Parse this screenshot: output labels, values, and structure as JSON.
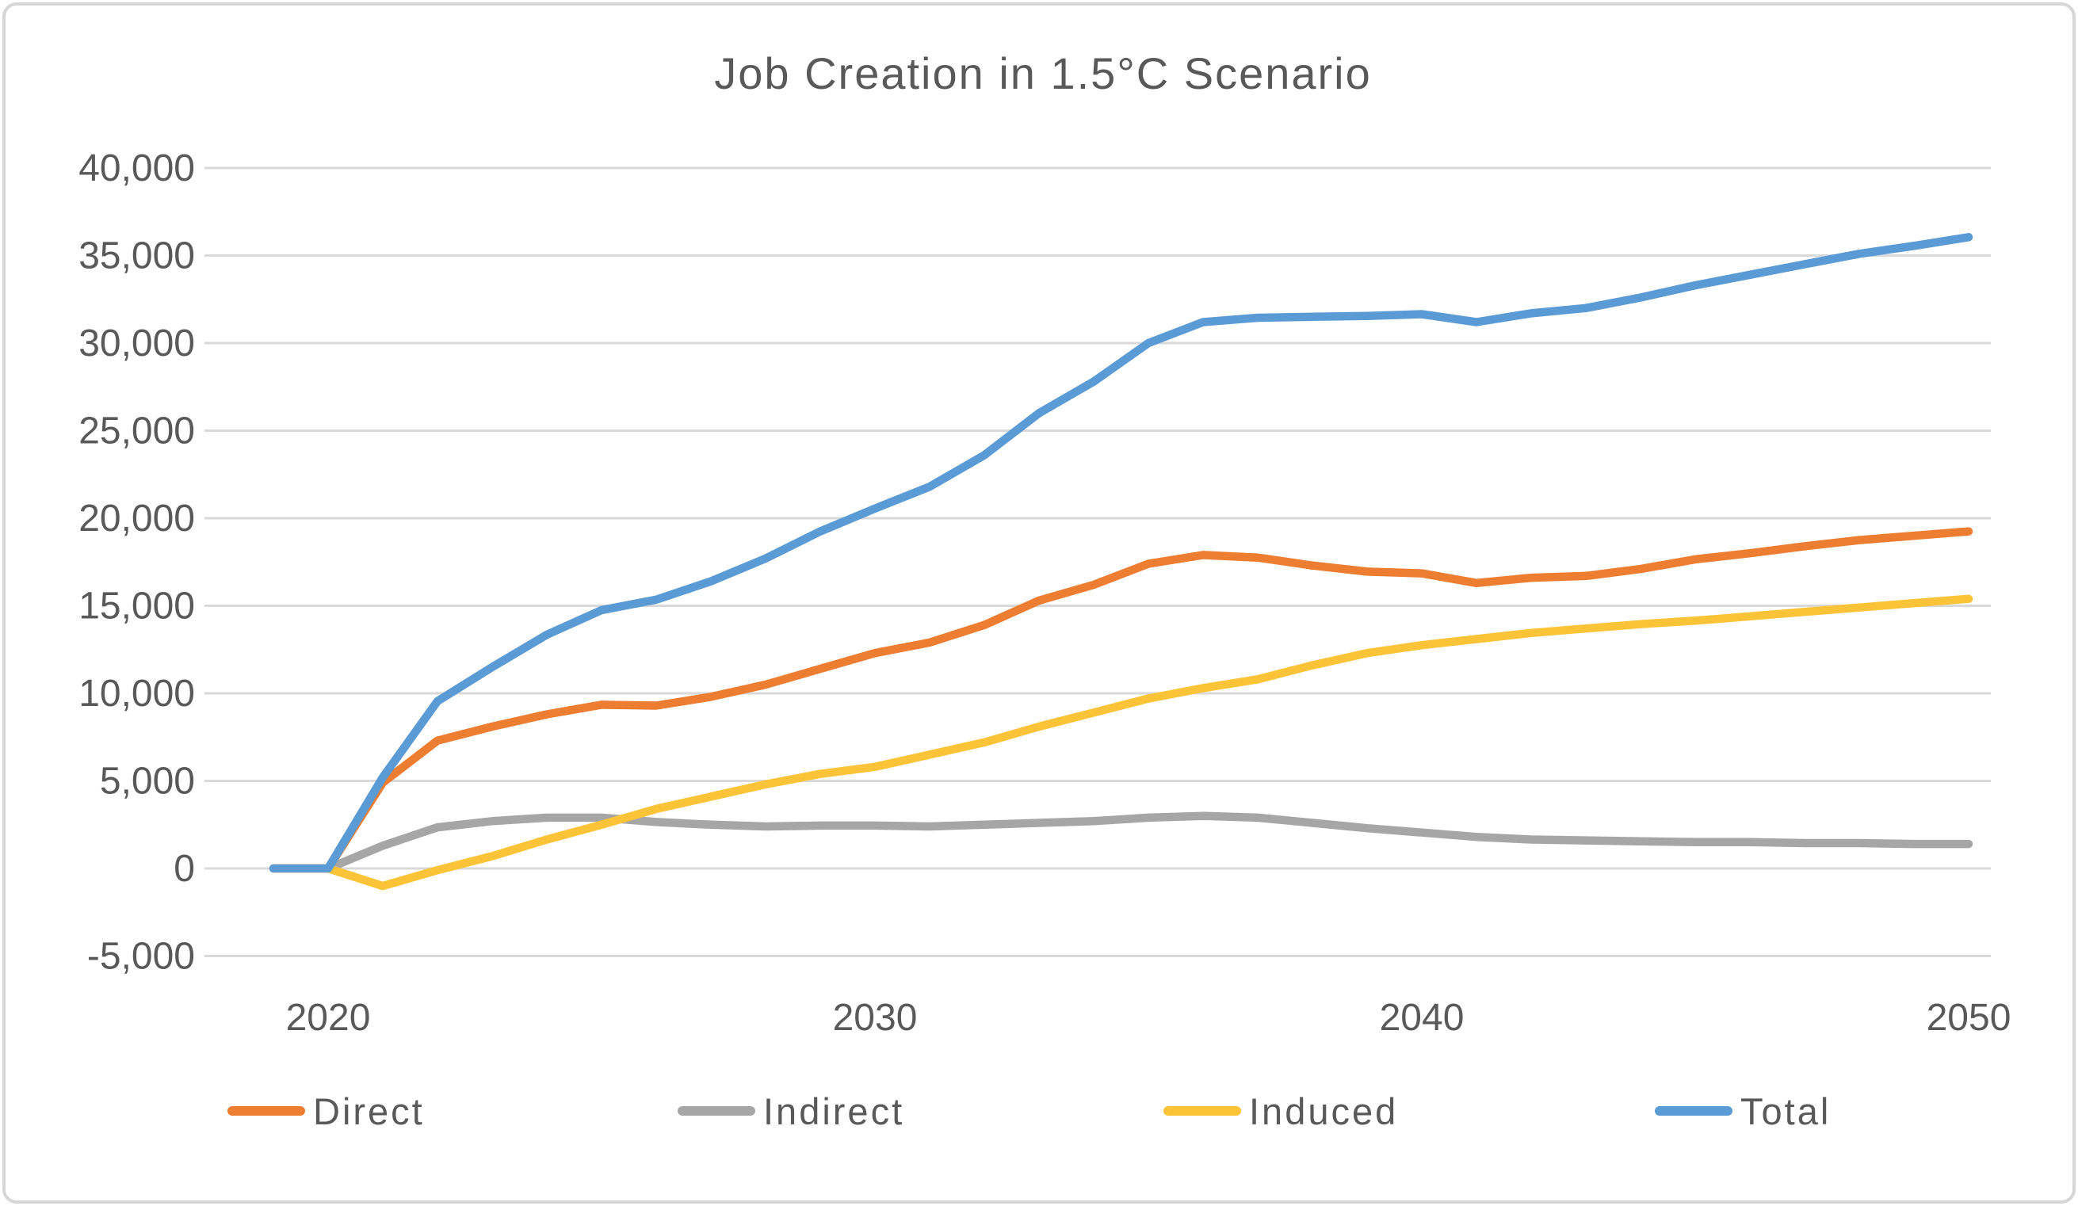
{
  "chart_data": {
    "type": "line",
    "title": "Job Creation in 1.5°C Scenario",
    "xlabel": "",
    "ylabel": "",
    "x": [
      2019,
      2020,
      2021,
      2022,
      2023,
      2024,
      2025,
      2026,
      2027,
      2028,
      2029,
      2030,
      2031,
      2032,
      2033,
      2034,
      2035,
      2036,
      2037,
      2038,
      2039,
      2040,
      2041,
      2042,
      2043,
      2044,
      2045,
      2046,
      2047,
      2048,
      2049,
      2050
    ],
    "series": [
      {
        "name": "Direct",
        "color": "#ED7D31",
        "values": [
          0,
          0,
          4900,
          7300,
          8100,
          8800,
          9350,
          9300,
          9800,
          10500,
          11400,
          12300,
          12900,
          13900,
          15300,
          16200,
          17400,
          17900,
          17750,
          17300,
          16950,
          16850,
          16300,
          16600,
          16700,
          17100,
          17650,
          18000,
          18400,
          18750,
          19000,
          19250
        ]
      },
      {
        "name": "Indirect",
        "color": "#A6A6A6",
        "values": [
          0,
          0,
          1300,
          2350,
          2700,
          2900,
          2900,
          2650,
          2500,
          2400,
          2450,
          2450,
          2400,
          2500,
          2600,
          2700,
          2900,
          3000,
          2900,
          2600,
          2300,
          2050,
          1800,
          1650,
          1600,
          1550,
          1500,
          1500,
          1450,
          1450,
          1400,
          1400
        ]
      },
      {
        "name": "Induced",
        "color": "#FBC337",
        "values": [
          0,
          0,
          -1000,
          -100,
          700,
          1650,
          2500,
          3400,
          4100,
          4800,
          5400,
          5800,
          6500,
          7200,
          8100,
          8900,
          9700,
          10300,
          10800,
          11600,
          12300,
          12750,
          13100,
          13450,
          13700,
          13950,
          14150,
          14400,
          14650,
          14900,
          15150,
          15400
        ]
      },
      {
        "name": "Total",
        "color": "#5B9BD5",
        "values": [
          0,
          0,
          5200,
          9550,
          11500,
          13350,
          14750,
          15350,
          16400,
          17700,
          19250,
          20550,
          21800,
          23600,
          26000,
          27800,
          30000,
          31200,
          31450,
          31500,
          31550,
          31650,
          31200,
          31700,
          32000,
          32600,
          33300,
          33900,
          34500,
          35100,
          35550,
          36050
        ]
      }
    ],
    "xticks": [
      2020,
      2030,
      2040,
      2050
    ],
    "yticks": [
      -5000,
      0,
      5000,
      10000,
      15000,
      20000,
      25000,
      30000,
      35000,
      40000
    ],
    "ylim": [
      -5000,
      40000
    ],
    "xlim": [
      2019,
      2050
    ],
    "grid": true,
    "legend_position": "bottom"
  },
  "style": {
    "axis_label_color": "#595959",
    "gridline_color": "#D9D9D9",
    "border_color": "#D6D6D6",
    "background": "#FFFFFF"
  }
}
